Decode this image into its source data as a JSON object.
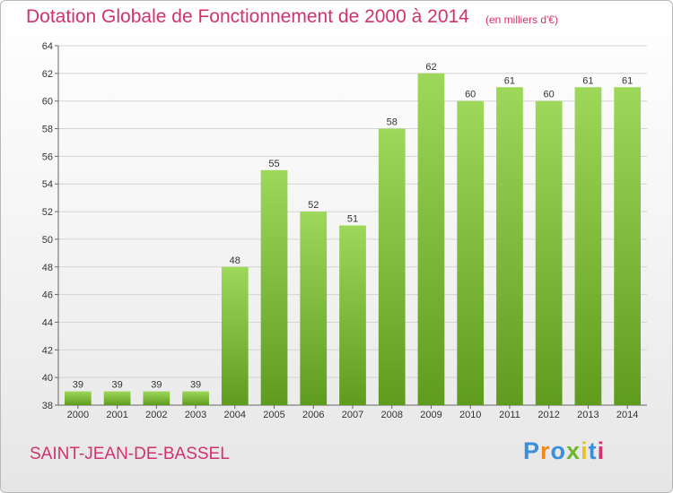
{
  "header": {
    "title": "Dotation Globale de Fonctionnement de 2000 à 2014",
    "unit": "(en milliers d'€)"
  },
  "footer": {
    "commune": "SAINT-JEAN-DE-BASSEL",
    "logo": [
      "P",
      "r",
      "o",
      "x",
      "i",
      "t",
      "i"
    ],
    "logo_colors": [
      "#3b8fd8",
      "#f08a1c",
      "#3b8fd8",
      "#6cb82c",
      "#e8c21e",
      "#3b8fd8",
      "#d2326e"
    ]
  },
  "colors": {
    "bar_top": "#9ed85a",
    "bar_bottom": "#5f9c1e",
    "title": "#d2326e"
  },
  "chart_data": {
    "type": "bar",
    "title": "Dotation Globale de Fonctionnement de 2000 à 2014",
    "categories": [
      "2000",
      "2001",
      "2002",
      "2003",
      "2004",
      "2005",
      "2006",
      "2007",
      "2008",
      "2009",
      "2010",
      "2011",
      "2012",
      "2013",
      "2014"
    ],
    "values": [
      39,
      39,
      39,
      39,
      48,
      55,
      52,
      51,
      58,
      62,
      60,
      61,
      60,
      61,
      61
    ],
    "ylim": [
      38,
      64
    ],
    "yticks": [
      38,
      40,
      42,
      44,
      46,
      48,
      50,
      52,
      54,
      56,
      58,
      60,
      62,
      64
    ],
    "grid": "horizontal"
  }
}
